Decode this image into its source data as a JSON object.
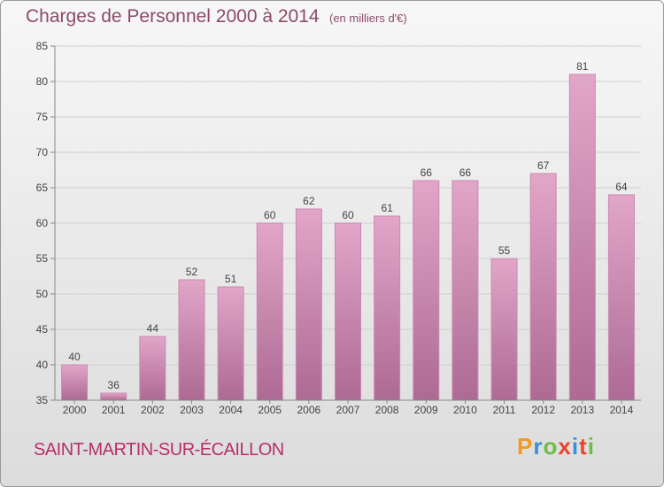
{
  "title": "Charges de Personnel 2000 à 2014",
  "subtitle": "(en milliers d'€)",
  "commune": "SAINT-MARTIN-SUR-ÉCAILLON",
  "logo": {
    "letters": [
      "P",
      "r",
      "o",
      "x",
      "i",
      "t",
      "i"
    ],
    "colors": [
      "#f39a1e",
      "#3a8fd8",
      "#6cbe45",
      "#e8452c",
      "#3a8fd8",
      "#e8452c",
      "#6cbe45"
    ]
  },
  "colors": {
    "bar_top": "#e2a6c8",
    "bar_bottom": "#ad6a93",
    "bar_stroke": "#c98ab0",
    "title": "#8c4a6a",
    "commune": "#b5306a"
  },
  "chart_data": {
    "type": "bar",
    "categories": [
      "2000",
      "2001",
      "2002",
      "2003",
      "2004",
      "2005",
      "2006",
      "2007",
      "2008",
      "2009",
      "2010",
      "2011",
      "2012",
      "2013",
      "2014"
    ],
    "values": [
      40,
      36,
      44,
      52,
      51,
      60,
      62,
      60,
      61,
      66,
      66,
      55,
      67,
      81,
      64
    ],
    "ylim": [
      35,
      85
    ],
    "yticks": [
      35,
      40,
      45,
      50,
      55,
      60,
      65,
      70,
      75,
      80,
      85
    ],
    "grid": true,
    "title": "Charges de Personnel 2000 à 2014",
    "subtitle": "(en milliers d'€)"
  }
}
